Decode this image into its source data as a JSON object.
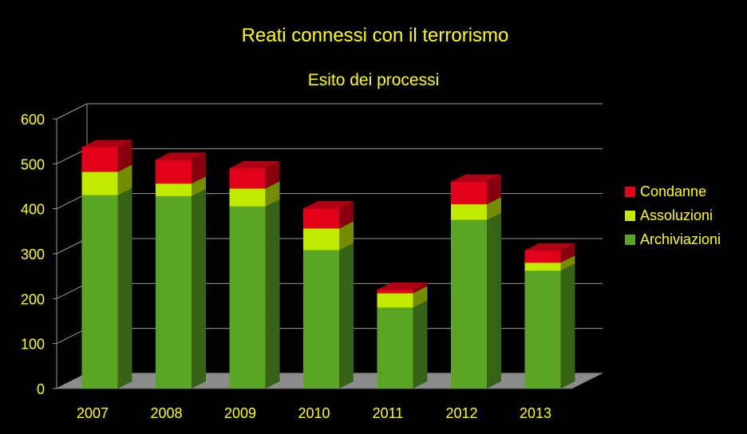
{
  "chart_data": {
    "type": "bar",
    "stacked": true,
    "three_d": true,
    "title": "Reati connessi con il terrorismo",
    "subtitle": "Esito dei processi",
    "xlabel": "",
    "ylabel": "",
    "categories": [
      "2007",
      "2008",
      "2009",
      "2010",
      "2011",
      "2012",
      "2013"
    ],
    "series": [
      {
        "name": "Archiviazioni",
        "values": [
          430,
          428,
          405,
          308,
          180,
          375,
          262
        ]
      },
      {
        "name": "Assoluzioni",
        "values": [
          52,
          28,
          40,
          48,
          32,
          35,
          18
        ]
      },
      {
        "name": "Condanne",
        "values": [
          55,
          53,
          45,
          45,
          8,
          50,
          27
        ]
      }
    ],
    "ylim": [
      0,
      600
    ],
    "yticks": [
      "0",
      "100",
      "200",
      "300",
      "400",
      "500",
      "600"
    ],
    "grid": true,
    "legend_position": "right",
    "colors": {
      "background": "#000000",
      "text": "#ffff00",
      "grid": "#9a9a9a",
      "floor": "#8c8c8c",
      "Archiviazioni": "#5aa524",
      "Assoluzioni": "#c2ea00",
      "Condanne": "#e2001a"
    }
  }
}
